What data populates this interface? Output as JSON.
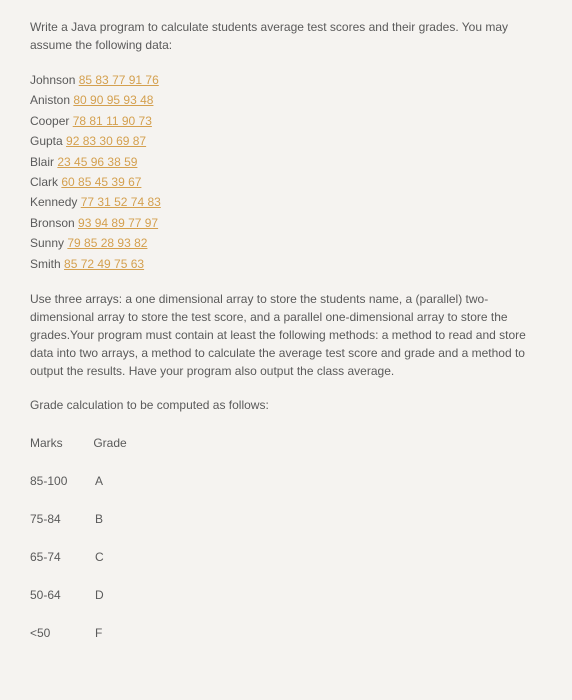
{
  "intro": "Write a Java program to calculate students average test scores and their grades. You may assume the following data:",
  "students": [
    {
      "name": "Johnson",
      "scores": "85 83 77 91 76"
    },
    {
      "name": "Aniston",
      "scores": "80 90 95 93 48"
    },
    {
      "name": "Cooper",
      "scores": "78 81 11 90 73"
    },
    {
      "name": "Gupta",
      "scores": "92 83 30 69 87"
    },
    {
      "name": "Blair",
      "scores": "23 45 96 38 59"
    },
    {
      "name": "Clark",
      "scores": "60 85 45 39 67"
    },
    {
      "name": "Kennedy",
      "scores": "77 31 52 74 83"
    },
    {
      "name": "Bronson",
      "scores": "93 94 89 77 97"
    },
    {
      "name": "Sunny",
      "scores": "79 85 28 93 82"
    },
    {
      "name": "Smith",
      "scores": "85 72 49 75 63"
    }
  ],
  "description": "Use three arrays: a one dimensional array to store the students name, a (parallel) two-dimensional array to store the test score, and a parallel one-dimensional array to store the grades.Your program must contain at least the following methods: a method to read and store data into two arrays, a method to calculate the average test score and grade and a method to output the results. Have your program also output the class average.",
  "gradeIntro": "Grade calculation to be computed as follows:",
  "headers": {
    "marks": "Marks",
    "grade": "Grade"
  },
  "gradeTable": [
    {
      "marks": "85-100",
      "grade": "A"
    },
    {
      "marks": "75-84",
      "grade": "B"
    },
    {
      "marks": "65-74",
      "grade": "C"
    },
    {
      "marks": "50-64",
      "grade": "D"
    },
    {
      "marks": "<50",
      "grade": "F"
    }
  ],
  "colors": {
    "background": "#f5f3f0",
    "text": "#5a5a5a",
    "link": "#d4a04f"
  },
  "typography": {
    "fontSize": 12,
    "fontFamily": "Arial, Helvetica, sans-serif",
    "lineHeight": 1.5
  }
}
